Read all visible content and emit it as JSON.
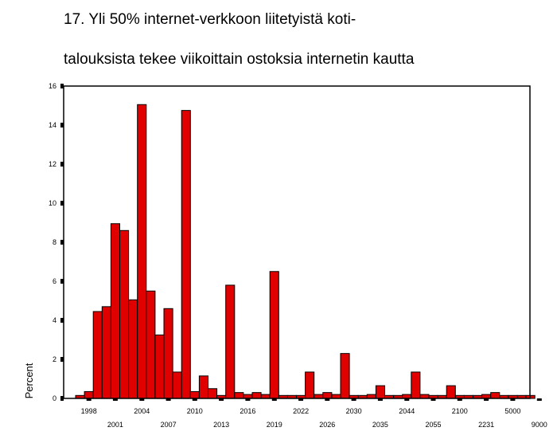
{
  "title_line1": "17. Yli 50% internet-verkkoon liitetyistä koti-",
  "title_line2": "talouksista tekee viikoittain ostoksia internetin kautta",
  "chart_data": {
    "type": "bar",
    "title": "17. Yli 50% internet-verkkoon liitetyistä kotitalouksista tekee viikoittain ostoksia internetin kautta",
    "xlabel": "",
    "ylabel": "Percent",
    "ylim": [
      0,
      16
    ],
    "yticks": [
      0,
      2,
      4,
      6,
      8,
      10,
      12,
      14,
      16
    ],
    "grid": false,
    "bar_color": "#e00000",
    "x_tick_labels_row1": [
      "1998",
      "2004",
      "2010",
      "2016",
      "2022",
      "2030",
      "2044",
      "2100",
      "5000"
    ],
    "x_tick_labels_row2": [
      "2001",
      "2007",
      "2013",
      "2019",
      "2026",
      "2035",
      "2055",
      "2231",
      "9000"
    ],
    "values": [
      0.15,
      0.35,
      4.45,
      4.7,
      8.95,
      8.6,
      5.05,
      15.05,
      5.5,
      3.25,
      4.6,
      1.35,
      14.75,
      0.35,
      1.15,
      0.5,
      0.15,
      5.8,
      0.3,
      0.2,
      0.3,
      0.2,
      6.5,
      0.15,
      0.15,
      0.15,
      1.35,
      0.2,
      0.3,
      0.2,
      2.3,
      0.15,
      0.15,
      0.2,
      0.65,
      0.15,
      0.15,
      0.2,
      1.35,
      0.2,
      0.15,
      0.15,
      0.65,
      0.15,
      0.15,
      0.15,
      0.2,
      0.3,
      0.15,
      0.15,
      0.15,
      0.15
    ]
  }
}
